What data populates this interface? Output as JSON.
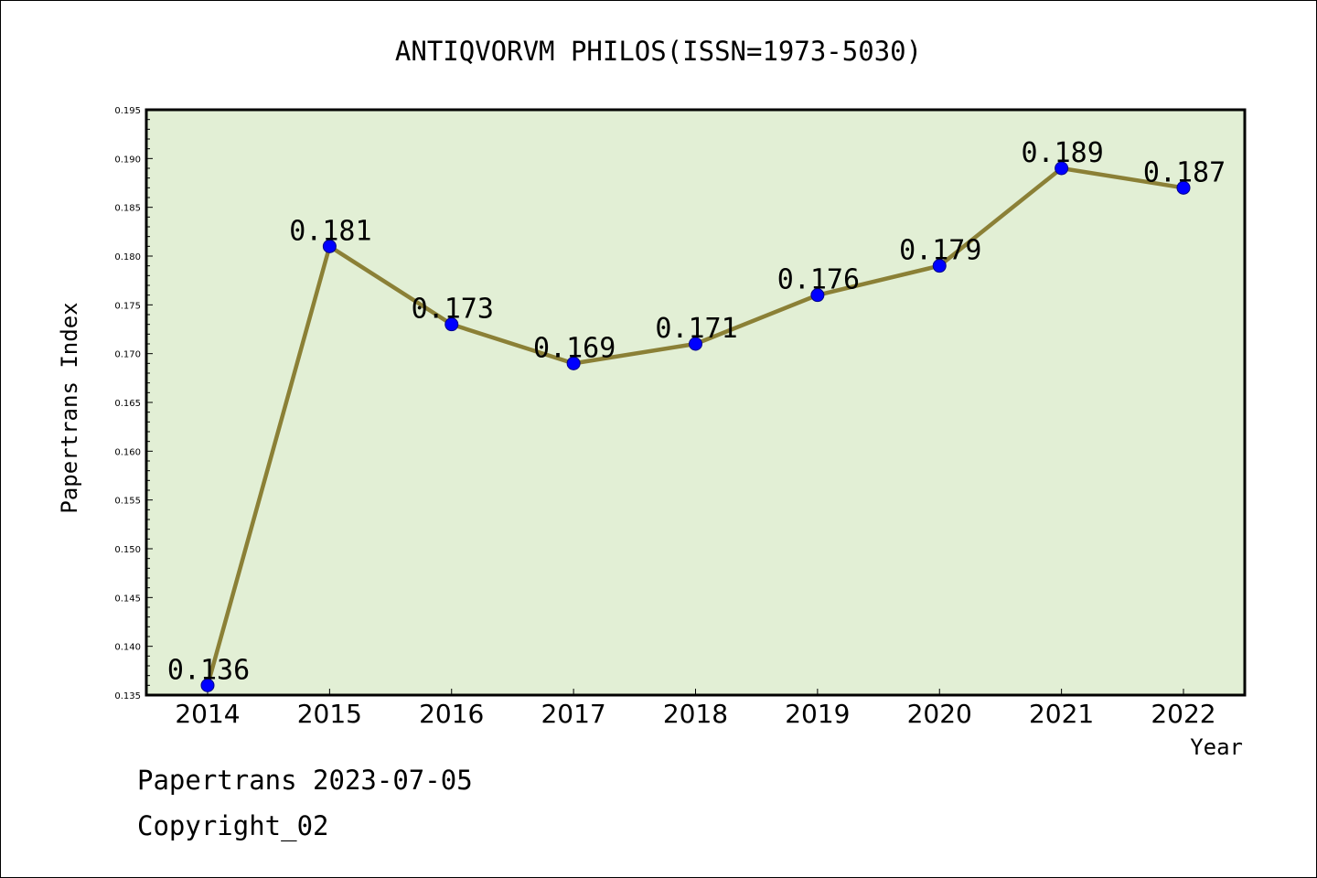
{
  "chart_data": {
    "type": "line",
    "title": "ANTIQVORVM PHILOS(ISSN=1973-5030)",
    "xlabel": "Year",
    "ylabel": "Papertrans Index",
    "categories": [
      "2014",
      "2015",
      "2016",
      "2017",
      "2018",
      "2019",
      "2020",
      "2021",
      "2022"
    ],
    "values": [
      0.136,
      0.181,
      0.173,
      0.169,
      0.171,
      0.176,
      0.179,
      0.189,
      0.187
    ],
    "data_labels": [
      "0.136",
      "0.181",
      "0.173",
      "0.169",
      "0.171",
      "0.176",
      "0.179",
      "0.189",
      "0.187"
    ],
    "ylim": [
      0.135,
      0.195
    ],
    "yticks": [
      "0.135",
      "0.140",
      "0.145",
      "0.150",
      "0.155",
      "0.160",
      "0.165",
      "0.170",
      "0.175",
      "0.180",
      "0.185",
      "0.190",
      "0.195"
    ],
    "grid": false,
    "colors": {
      "line": "#8b8036",
      "marker": "#0000ff",
      "plot_background": "#e2efd5"
    }
  },
  "footer": {
    "source": "Papertrans 2023-07-05",
    "copyright": "Copyright_02"
  }
}
